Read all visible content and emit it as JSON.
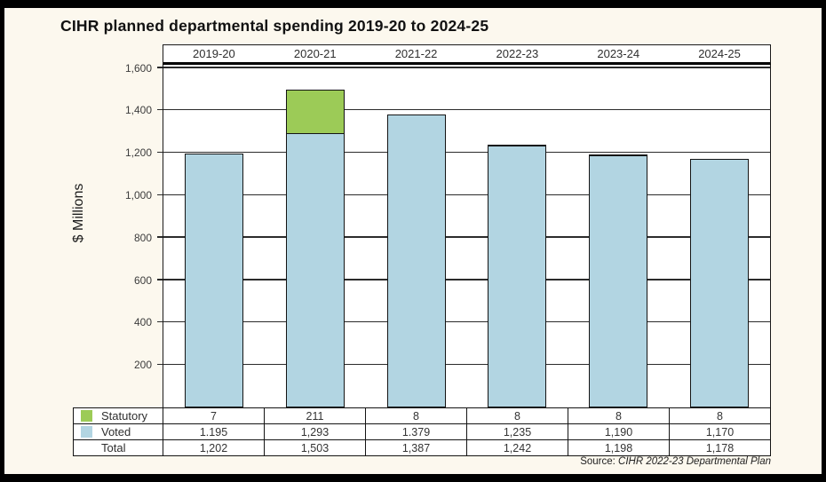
{
  "title": "CIHR planned departmental spending 2019-20 to 2024-25",
  "y_axis_label": "$ Millions",
  "source": {
    "prefix": "Source: ",
    "reference": "CIHR 2022-23 Departmental Plan"
  },
  "colors": {
    "statutory": "#9ccb57",
    "voted": "#b2d5e2",
    "background": "#fcf8ee",
    "plot_background": "#ffffff",
    "frame": "#000000"
  },
  "chart_data": {
    "type": "bar",
    "stacked": true,
    "categories": [
      "2019-20",
      "2020-21",
      "2021-22",
      "2022-23",
      "2023-24",
      "2024-25"
    ],
    "series": [
      {
        "name": "Statutory",
        "color_key": "statutory",
        "values": [
          7,
          211,
          8,
          8,
          8,
          8
        ]
      },
      {
        "name": "Voted",
        "color_key": "voted",
        "values": [
          1195,
          1293,
          1379,
          1235,
          1190,
          1170
        ]
      }
    ],
    "totals": [
      1202,
      1503,
      1387,
      1242,
      1198,
      1178
    ],
    "title": "CIHR planned departmental spending 2019-20 to 2024-25",
    "xlabel": "",
    "ylabel": "$ Millions",
    "ylim": [
      0,
      1615
    ],
    "yticks": [
      200,
      400,
      600,
      800,
      1000,
      1200,
      1400,
      1600
    ],
    "ytick_labels": [
      "200",
      "400",
      "600",
      "800",
      "1,000",
      "1,200",
      "1,400",
      "1,600"
    ],
    "grid": true,
    "legend_position": "table-left"
  },
  "table": {
    "rows": [
      {
        "label": "Statutory",
        "swatch": "statutory",
        "values": [
          "7",
          "211",
          "8",
          "8",
          "8",
          "8"
        ]
      },
      {
        "label": "Voted",
        "swatch": "voted",
        "values": [
          "1.195",
          "1,293",
          "1.379",
          "1,235",
          "1,190",
          "1,170"
        ]
      },
      {
        "label": "Total",
        "swatch": null,
        "values": [
          "1,202",
          "1,503",
          "1,387",
          "1,242",
          "1,198",
          "1,178"
        ]
      }
    ]
  }
}
